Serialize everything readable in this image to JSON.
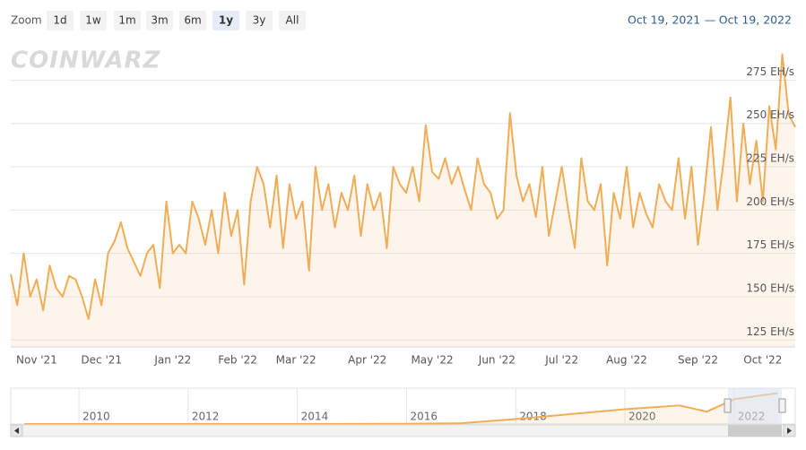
{
  "range_selector": {
    "label": "Zoom",
    "buttons": [
      "1d",
      "1w",
      "1m",
      "3m",
      "6m",
      "1y",
      "3y",
      "All"
    ],
    "selected": 5
  },
  "date_range": {
    "from": "Oct 19, 2021",
    "separator": "—",
    "to": "Oct 19, 2022"
  },
  "watermark": "COINWARZ",
  "chart_data": [
    {
      "type": "area",
      "categories": [
        null,
        null,
        null,
        null,
        "Nov '21",
        null,
        null,
        null,
        null,
        null,
        null,
        null,
        null,
        null,
        "Dec '21",
        null,
        null,
        null,
        null,
        null,
        null,
        null,
        null,
        null,
        null,
        "Jan '22",
        null,
        null,
        null,
        null,
        null,
        null,
        null,
        null,
        null,
        "Feb '22",
        null,
        null,
        null,
        null,
        null,
        null,
        null,
        null,
        "Mar '22",
        null,
        null,
        null,
        null,
        null,
        null,
        null,
        null,
        null,
        null,
        "Apr '22",
        null,
        null,
        null,
        null,
        null,
        null,
        null,
        null,
        null,
        "May '22",
        null,
        null,
        null,
        null,
        null,
        null,
        null,
        null,
        null,
        "Jun '22",
        null,
        null,
        null,
        null,
        null,
        null,
        null,
        null,
        null,
        "Jul '22",
        null,
        null,
        null,
        null,
        null,
        null,
        null,
        null,
        null,
        "Aug '22",
        null,
        null,
        null,
        null,
        null,
        null,
        null,
        null,
        null,
        null,
        "Sep '22",
        null,
        null,
        null,
        null,
        null,
        null,
        null,
        null,
        null,
        "Oct '22",
        null,
        null,
        null,
        null,
        null
      ],
      "values": [
        163,
        145,
        175,
        150,
        160,
        142,
        168,
        155,
        150,
        162,
        160,
        150,
        137,
        160,
        145,
        175,
        182,
        193,
        178,
        170,
        162,
        175,
        180,
        155,
        205,
        175,
        180,
        175,
        205,
        195,
        180,
        200,
        175,
        210,
        185,
        200,
        157,
        205,
        225,
        215,
        190,
        220,
        178,
        215,
        195,
        205,
        165,
        225,
        200,
        215,
        190,
        210,
        200,
        220,
        185,
        215,
        200,
        210,
        178,
        225,
        215,
        210,
        225,
        205,
        249,
        222,
        218,
        230,
        215,
        225,
        212,
        200,
        230,
        215,
        210,
        195,
        200,
        256,
        220,
        205,
        215,
        196,
        225,
        185,
        205,
        225,
        200,
        178,
        230,
        205,
        200,
        215,
        168,
        210,
        195,
        225,
        190,
        210,
        198,
        190,
        215,
        205,
        200,
        230,
        195,
        225,
        180,
        210,
        248,
        200,
        230,
        265,
        205,
        250,
        215,
        240,
        205,
        260,
        235,
        290,
        255,
        248
      ],
      "color": "#f0ad58",
      "ylim": [
        121,
        298
      ],
      "yticks": [
        {
          "value": 125,
          "label": "125 EH/s"
        },
        {
          "value": 150,
          "label": "150 EH/s"
        },
        {
          "value": 175,
          "label": "175 EH/s"
        },
        {
          "value": 200,
          "label": "200 EH/s"
        },
        {
          "value": 225,
          "label": "225 EH/s"
        },
        {
          "value": 250,
          "label": "250 EH/s"
        },
        {
          "value": 275,
          "label": "275 EH/s"
        }
      ],
      "grid": true
    },
    {
      "type": "area",
      "x": [
        2009,
        2011,
        2013,
        2014,
        2015,
        2016,
        2017,
        2018,
        2019,
        2020,
        2021,
        2021.5,
        2022,
        2022.8
      ],
      "values": [
        0,
        0,
        0.1,
        0.3,
        0.5,
        1.5,
        6,
        40,
        80,
        120,
        150,
        100,
        200,
        250
      ],
      "color": "#f0ad58",
      "xlim": [
        2008.75,
        2023.12
      ],
      "ylim": [
        0,
        290
      ],
      "xticks": [
        2010,
        2012,
        2014,
        2016,
        2018,
        2020,
        2022
      ],
      "grid": true
    }
  ]
}
